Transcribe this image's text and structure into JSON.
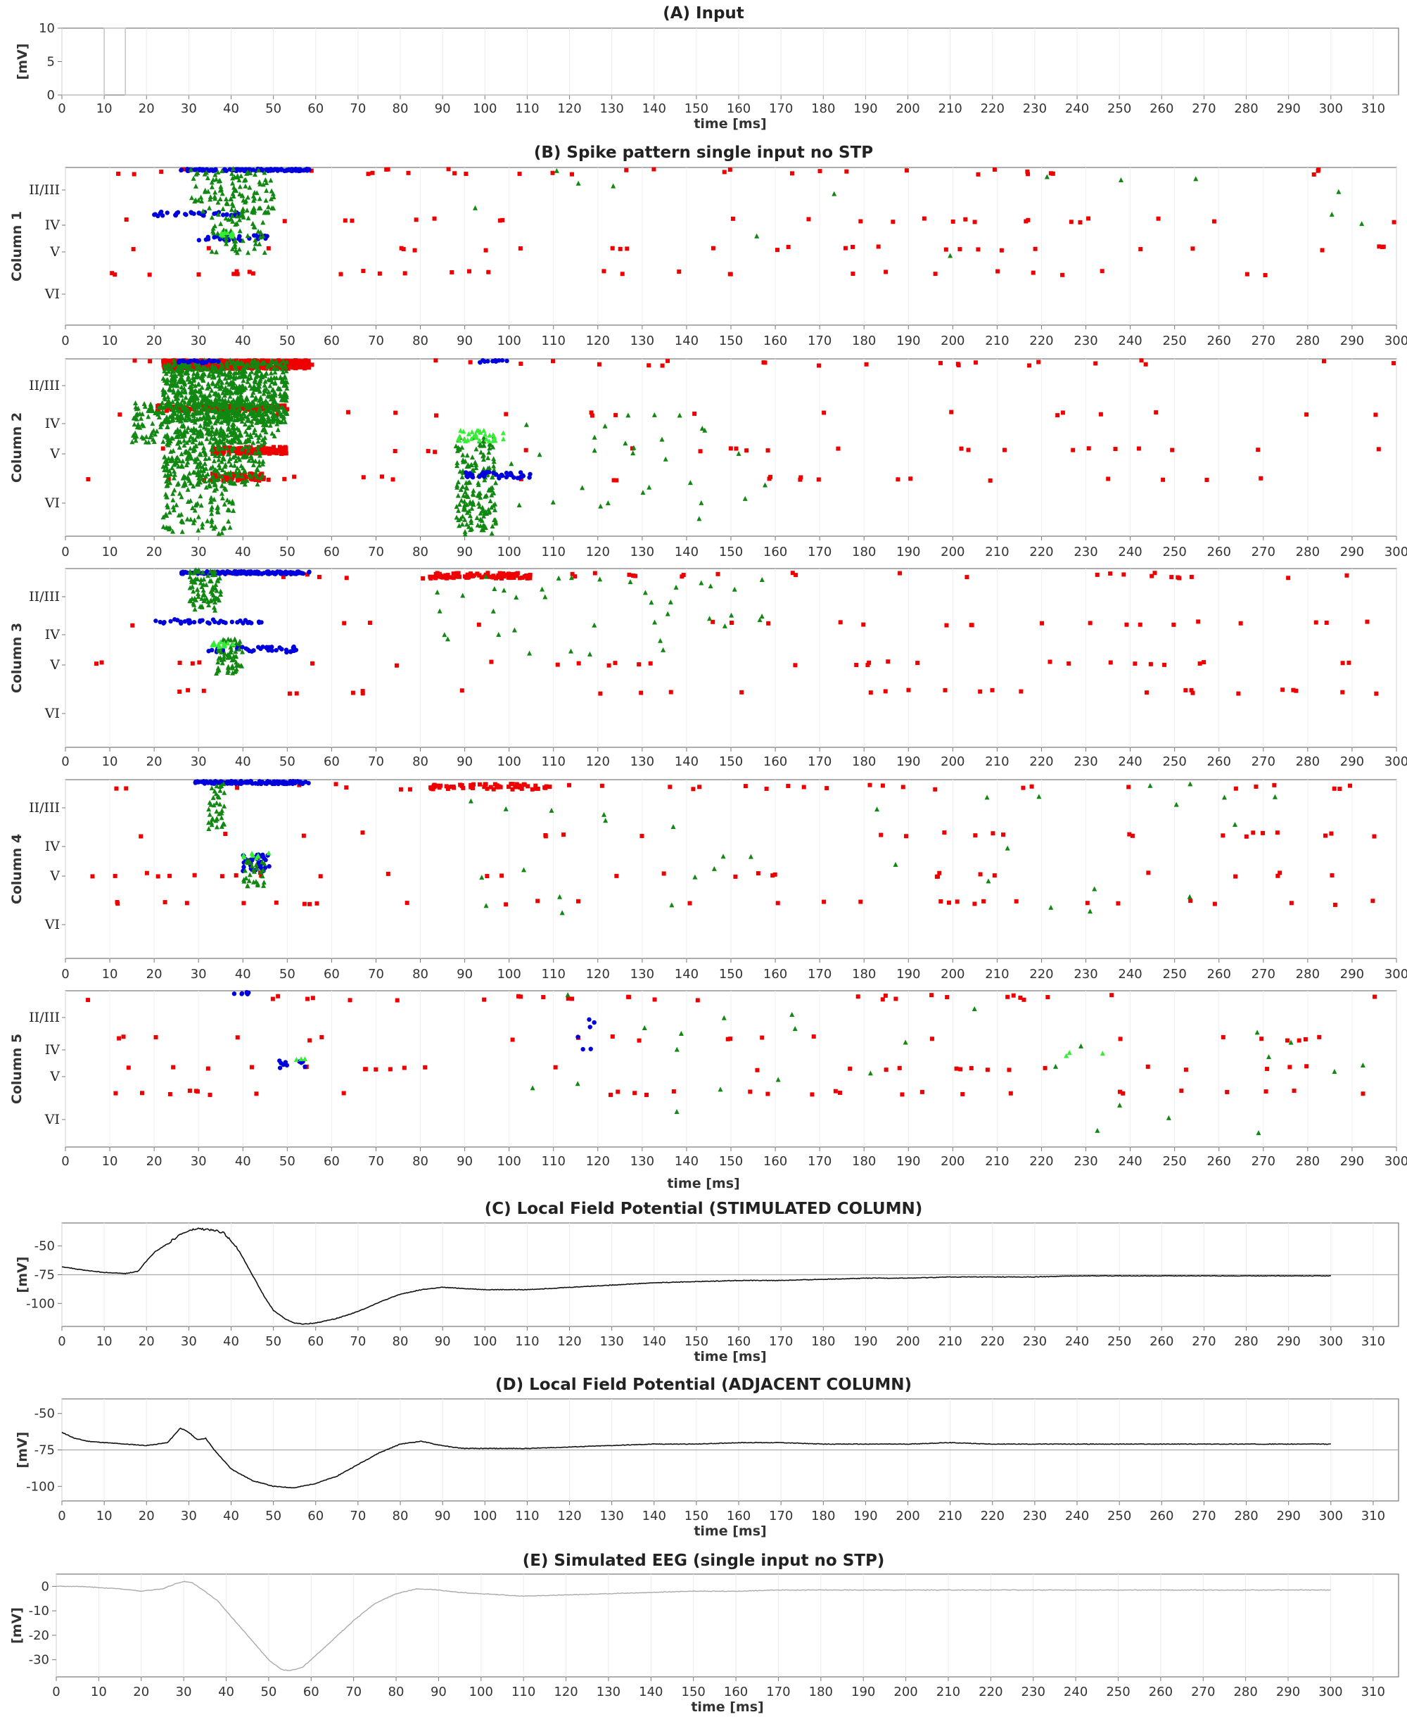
{
  "chart_data": [
    {
      "id": "A",
      "type": "line",
      "title": "(A) Input",
      "xlabel": "time [ms]",
      "ylabel": "[mV]",
      "xlim": [
        0,
        316
      ],
      "ylim": [
        0,
        10
      ],
      "xticks": [
        0,
        10,
        20,
        30,
        40,
        50,
        60,
        70,
        80,
        90,
        100,
        110,
        120,
        130,
        140,
        150,
        160,
        170,
        180,
        190,
        200,
        210,
        220,
        230,
        240,
        250,
        260,
        270,
        280,
        290,
        300,
        310
      ],
      "yticks": [
        0,
        5,
        10
      ],
      "grid": true,
      "series": [
        {
          "x": [
            0,
            10,
            10,
            15,
            15,
            316
          ],
          "y": [
            0,
            0,
            10,
            10,
            0,
            0
          ],
          "color": "#c8c8c8"
        }
      ]
    },
    {
      "id": "B",
      "type": "scatter",
      "title": "(B) Spike pattern single input no STP",
      "xlabel": "time [ms]",
      "xlim": [
        0,
        300
      ],
      "xticks": [
        0,
        10,
        20,
        30,
        40,
        50,
        60,
        70,
        80,
        90,
        100,
        110,
        120,
        130,
        140,
        150,
        160,
        170,
        180,
        190,
        200,
        210,
        220,
        230,
        240,
        250,
        260,
        270,
        280,
        290,
        300
      ],
      "layers": [
        "II/III",
        "IV",
        "V",
        "VI"
      ],
      "colors": {
        "excitatory": "#ee0000",
        "inhibitory": "#0000dd",
        "burst": "#118811",
        "input": "#33ee33"
      },
      "columns": [
        {
          "name": "Column 1"
        },
        {
          "name": "Column 2"
        },
        {
          "name": "Column 3"
        },
        {
          "name": "Column 4"
        },
        {
          "name": "Column 5"
        }
      ]
    },
    {
      "id": "C",
      "type": "line",
      "title": "(C) Local Field Potential (STIMULATED COLUMN)",
      "xlabel": "time [ms]",
      "ylabel": "[mV]",
      "xlim": [
        0,
        316
      ],
      "ylim": [
        -120,
        -30
      ],
      "xticks": [
        0,
        10,
        20,
        30,
        40,
        50,
        60,
        70,
        80,
        90,
        100,
        110,
        120,
        130,
        140,
        150,
        160,
        170,
        180,
        190,
        200,
        210,
        220,
        230,
        240,
        250,
        260,
        270,
        280,
        290,
        300,
        310
      ],
      "yticks": [
        -50,
        -75,
        -100
      ],
      "reference_line": -75,
      "grid": true,
      "series": [
        {
          "color": "#111111",
          "x": [
            0,
            5,
            10,
            15,
            18,
            20,
            22,
            25,
            28,
            30,
            32,
            35,
            38,
            40,
            42,
            45,
            48,
            50,
            53,
            55,
            57,
            60,
            65,
            70,
            75,
            80,
            85,
            90,
            95,
            100,
            110,
            120,
            130,
            140,
            150,
            160,
            170,
            180,
            190,
            200,
            210,
            220,
            230,
            240,
            250,
            260,
            270,
            280,
            290,
            300
          ],
          "y": [
            -68,
            -71,
            -73,
            -74,
            -72,
            -63,
            -55,
            -48,
            -40,
            -37,
            -35,
            -36,
            -38,
            -45,
            -55,
            -75,
            -95,
            -106,
            -114,
            -117,
            -118,
            -117,
            -113,
            -107,
            -99,
            -92,
            -88,
            -86,
            -87,
            -88,
            -88,
            -86,
            -84,
            -82,
            -81,
            -80,
            -80,
            -79,
            -78,
            -78,
            -77,
            -77,
            -77,
            -76,
            -76,
            -76,
            -76,
            -76,
            -76,
            -76
          ]
        }
      ]
    },
    {
      "id": "D",
      "type": "line",
      "title": "(D) Local Field Potential (ADJACENT COLUMN)",
      "xlabel": "time [ms]",
      "ylabel": "[mV]",
      "xlim": [
        0,
        316
      ],
      "ylim": [
        -110,
        -40
      ],
      "xticks": [
        0,
        10,
        20,
        30,
        40,
        50,
        60,
        70,
        80,
        90,
        100,
        110,
        120,
        130,
        140,
        150,
        160,
        170,
        180,
        190,
        200,
        210,
        220,
        230,
        240,
        250,
        260,
        270,
        280,
        290,
        300,
        310
      ],
      "yticks": [
        -50,
        -75,
        -100
      ],
      "reference_line": -75,
      "grid": true,
      "series": [
        {
          "color": "#111111",
          "x": [
            0,
            3,
            6,
            10,
            15,
            20,
            25,
            28,
            30,
            32,
            34,
            36,
            40,
            45,
            50,
            55,
            60,
            65,
            70,
            75,
            80,
            85,
            88,
            92,
            95,
            100,
            110,
            120,
            130,
            140,
            150,
            160,
            170,
            180,
            190,
            200,
            210,
            220,
            230,
            240,
            250,
            260,
            270,
            280,
            290,
            300
          ],
          "y": [
            -63,
            -67,
            -69,
            -70,
            -71,
            -72,
            -70,
            -60,
            -63,
            -68,
            -67,
            -75,
            -88,
            -96,
            -100,
            -101,
            -98,
            -93,
            -85,
            -77,
            -71,
            -69,
            -71,
            -73,
            -74,
            -74,
            -74,
            -73,
            -72,
            -71,
            -71,
            -70,
            -70,
            -71,
            -71,
            -71,
            -70,
            -71,
            -71,
            -71,
            -71,
            -71,
            -71,
            -71,
            -71,
            -71
          ]
        }
      ]
    },
    {
      "id": "E",
      "type": "line",
      "title": "(E) Simulated EEG (single input no STP)",
      "xlabel": "time [ms]",
      "ylabel": "[mV]",
      "xlim": [
        0,
        316
      ],
      "ylim": [
        -37,
        5
      ],
      "xticks": [
        0,
        10,
        20,
        30,
        40,
        50,
        60,
        70,
        80,
        90,
        100,
        110,
        120,
        130,
        140,
        150,
        160,
        170,
        180,
        190,
        200,
        210,
        220,
        230,
        240,
        250,
        260,
        270,
        280,
        290,
        300,
        310
      ],
      "yticks": [
        0,
        -10,
        -20,
        -30
      ],
      "grid": true,
      "series": [
        {
          "color": "#aaaaaa",
          "x": [
            0,
            5,
            10,
            15,
            20,
            25,
            28,
            30,
            32,
            35,
            38,
            40,
            45,
            50,
            53,
            55,
            58,
            60,
            65,
            70,
            75,
            80,
            85,
            90,
            95,
            100,
            105,
            110,
            120,
            130,
            140,
            150,
            160,
            170,
            180,
            190,
            200,
            210,
            220,
            230,
            240,
            250,
            260,
            270,
            280,
            290,
            300
          ],
          "y": [
            0,
            0,
            -0.5,
            -1,
            -2,
            -1,
            1,
            2,
            1.5,
            -2,
            -6,
            -10,
            -20,
            -30,
            -34,
            -34.5,
            -33,
            -30,
            -22,
            -14,
            -7,
            -3,
            -1,
            -1.5,
            -2.5,
            -3,
            -3.5,
            -4,
            -3.5,
            -3,
            -2.5,
            -2,
            -2,
            -1.5,
            -1.5,
            -1.5,
            -1.5,
            -1.5,
            -1.5,
            -1.5,
            -1.5,
            -1.5,
            -1.5,
            -1.5,
            -1.5,
            -1.5,
            -1.5
          ]
        }
      ]
    }
  ]
}
